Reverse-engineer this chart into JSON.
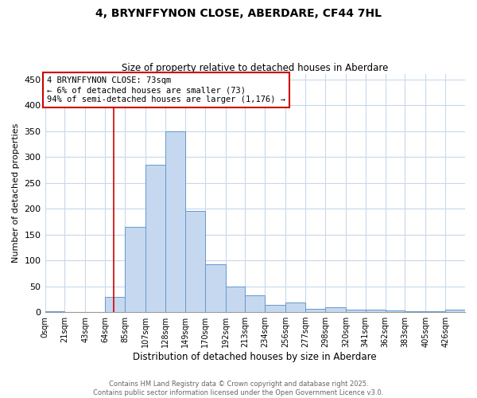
{
  "title": "4, BRYNFFYNON CLOSE, ABERDARE, CF44 7HL",
  "subtitle": "Size of property relative to detached houses in Aberdare",
  "xlabel": "Distribution of detached houses by size in Aberdare",
  "ylabel": "Number of detached properties",
  "bar_color": "#c5d8f0",
  "bar_edge_color": "#6699cc",
  "annotation_box_color": "#cc0000",
  "vline_color": "#cc0000",
  "vline_x": 73,
  "annotation_text": "4 BRYNFFYNON CLOSE: 73sqm\n← 6% of detached houses are smaller (73)\n94% of semi-detached houses are larger (1,176) →",
  "footer_text": "Contains HM Land Registry data © Crown copyright and database right 2025.\nContains public sector information licensed under the Open Government Licence v3.0.",
  "bin_edges": [
    0,
    21,
    43,
    64,
    85,
    107,
    128,
    149,
    170,
    192,
    213,
    234,
    256,
    277,
    298,
    320,
    341,
    362,
    383,
    405,
    426,
    447
  ],
  "bar_heights": [
    2,
    0,
    0,
    30,
    165,
    285,
    350,
    195,
    93,
    50,
    32,
    14,
    18,
    7,
    10,
    5,
    5,
    3,
    1,
    1,
    5
  ],
  "xlim": [
    0,
    447
  ],
  "ylim": [
    0,
    460
  ],
  "yticks": [
    0,
    50,
    100,
    150,
    200,
    250,
    300,
    350,
    400,
    450
  ],
  "xtick_labels": [
    "0sqm",
    "21sqm",
    "43sqm",
    "64sqm",
    "85sqm",
    "107sqm",
    "128sqm",
    "149sqm",
    "170sqm",
    "192sqm",
    "213sqm",
    "234sqm",
    "256sqm",
    "277sqm",
    "298sqm",
    "320sqm",
    "341sqm",
    "362sqm",
    "383sqm",
    "405sqm",
    "426sqm"
  ],
  "background_color": "#ffffff",
  "grid_color": "#c8d8ec"
}
